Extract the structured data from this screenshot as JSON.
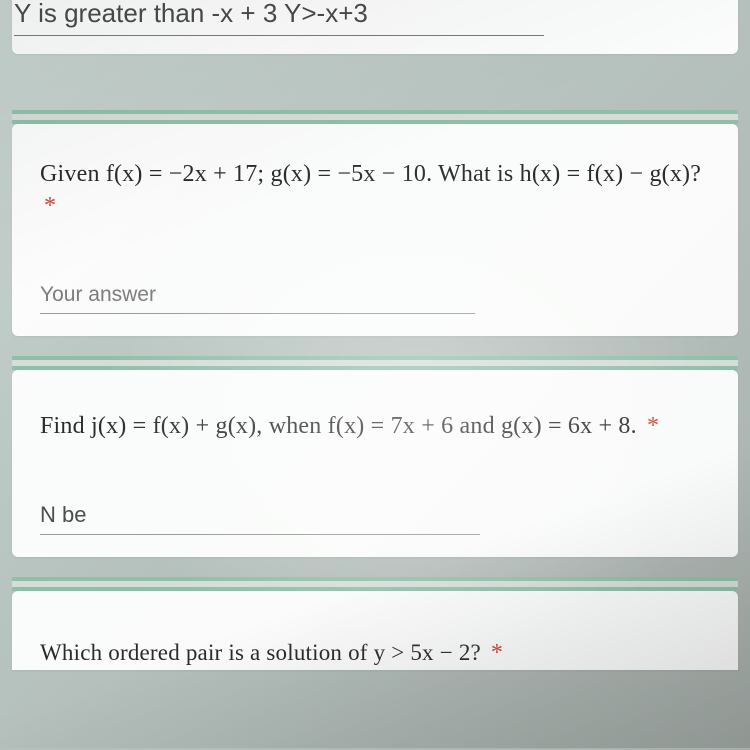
{
  "colors": {
    "accent_border": "#8fbfa9",
    "required_star": "#c5483b",
    "prompt_text": "#2b2b2b",
    "placeholder": "#7d7d7d",
    "underline": "#999999",
    "card_bg": "#ffffff"
  },
  "q0": {
    "entered_answer": "Y is greater than -x + 3 Y>-x+3"
  },
  "q1": {
    "prompt": "Given f(x) = −2x + 17; g(x) = −5x − 10. What is h(x) = f(x) − g(x)?",
    "required_mark": "*",
    "answer_placeholder": "Your answer"
  },
  "q2": {
    "prompt": "Find j(x) = f(x) + g(x), when f(x) = 7x + 6 and g(x) = 6x + 8.",
    "required_mark": "*",
    "entered_answer": "N  be"
  },
  "q3": {
    "prompt": "Which ordered pair is a solution of y > 5x − 2?",
    "required_mark": "*"
  }
}
